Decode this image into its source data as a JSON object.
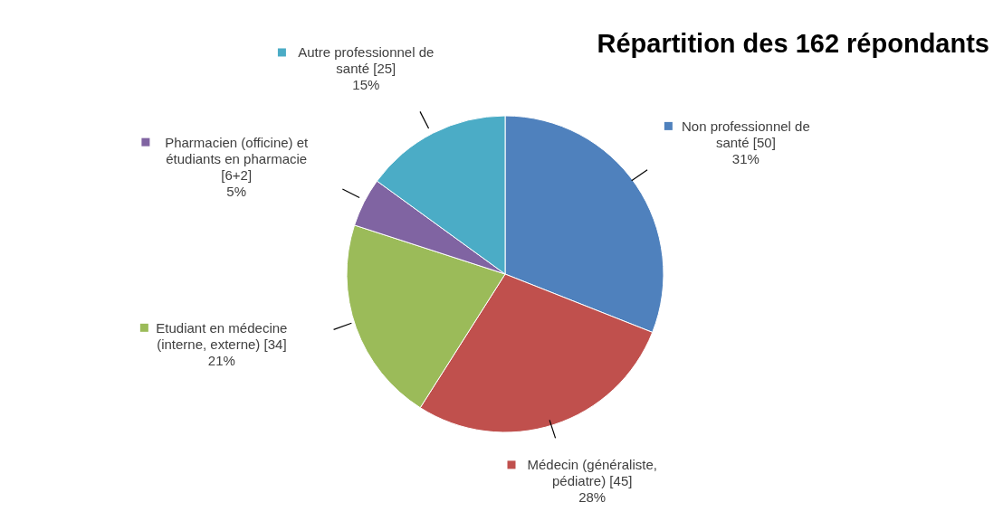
{
  "chart_data": {
    "type": "pie",
    "title": "Répartition des 162 répondants",
    "categories": [
      "Non professionnel de santé [50]",
      "Médecin (généraliste, pédiatre) [45]",
      "Etudiant en médecine (interne, externe) [34]",
      "Pharmacien (officine) et étudiants en pharmacie [6+2]",
      "Autre professionnel de santé [25]"
    ],
    "values": [
      31,
      28,
      21,
      5,
      15
    ],
    "value_labels": [
      "31%",
      "28%",
      "21%",
      "5%",
      "15%"
    ],
    "legend": "top left",
    "colors": [
      "#4f81bd",
      "#c0504d",
      "#9bbb59",
      "#8064a2",
      "#4bacc6"
    ]
  }
}
